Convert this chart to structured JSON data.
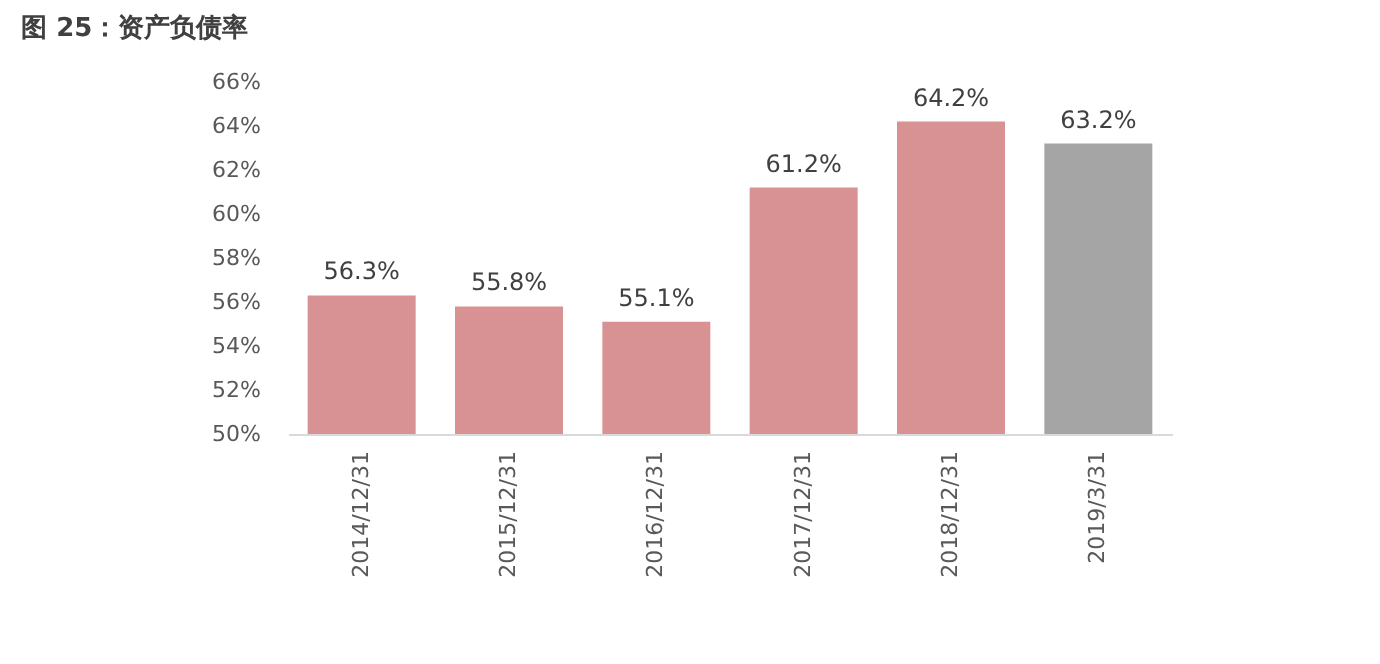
{
  "chart_data": {
    "type": "bar",
    "title": "图 25：资产负债率",
    "categories": [
      "2014/12/31",
      "2015/12/31",
      "2016/12/31",
      "2017/12/31",
      "2018/12/31",
      "2019/3/31"
    ],
    "values": [
      56.3,
      55.8,
      55.1,
      61.2,
      64.2,
      63.2
    ],
    "colors": [
      "#d99294",
      "#d99294",
      "#d99294",
      "#d99294",
      "#d99294",
      "#a5a5a5"
    ],
    "value_labels": [
      "56.3%",
      "55.8%",
      "55.1%",
      "61.2%",
      "64.2%",
      "63.2%"
    ],
    "ylim": [
      50,
      66
    ],
    "yticks": [
      {
        "value": 50,
        "label": "50%"
      },
      {
        "value": 52,
        "label": "52%"
      },
      {
        "value": 54,
        "label": "54%"
      },
      {
        "value": 56,
        "label": "56%"
      },
      {
        "value": 58,
        "label": "58%"
      },
      {
        "value": 60,
        "label": "60%"
      },
      {
        "value": 62,
        "label": "62%"
      },
      {
        "value": 64,
        "label": "64%"
      },
      {
        "value": 66,
        "label": "66%"
      }
    ],
    "grid": false
  }
}
